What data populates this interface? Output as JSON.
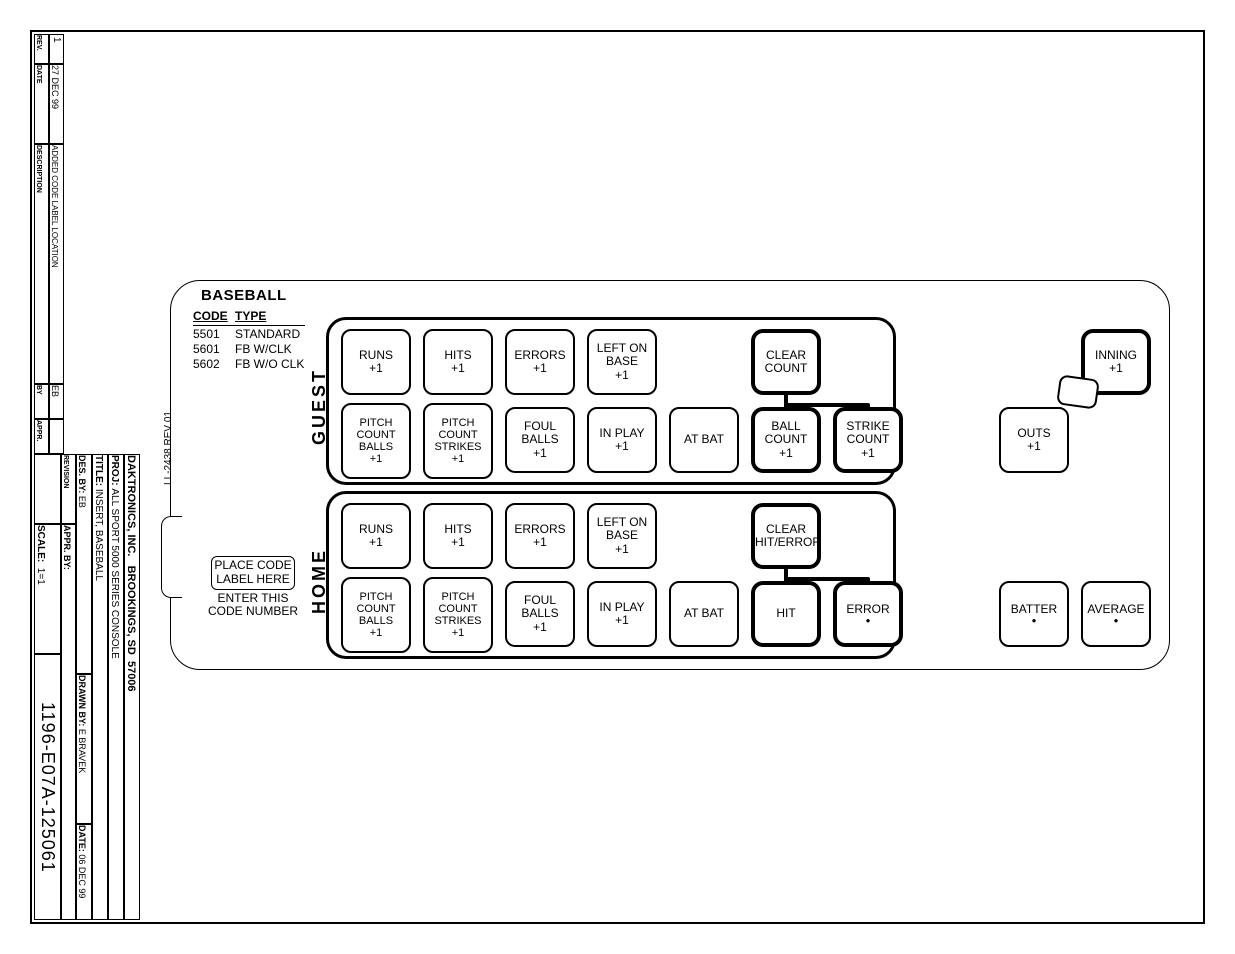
{
  "titleblock": {
    "rev_hdr": "REV.",
    "rev": "1",
    "date_hdr": "DATE",
    "date": "27 DEC 99",
    "desc_hdr": "DESCRIPTION",
    "desc": "ADDED CODE LABEL LOCATION",
    "by_hdr": "BY",
    "by": "EB",
    "appr_hdr": "APPR.",
    "company": "DAKTRONICS, INC.   BROOKINGS, SD  57006",
    "proj_hdr": "PROJ:",
    "proj": "ALL SPORT 5000 SERIES CONSOLE",
    "title_hdr": "TITLE:",
    "title": "INSERT, BASEBALL",
    "desby_hdr": "DES. BY:",
    "desby": "EB",
    "drawn_hdr": "DRAWN BY:",
    "drawn": "E BRAVEK",
    "date2_hdr": "DATE:",
    "date2": "06 DEC 99",
    "revision_hdr": "REVISION",
    "appr2_hdr": "APPR. BY:",
    "scale_hdr": "SCALE:",
    "scale": "1=1",
    "dwgno": "1196-E07A-125061"
  },
  "panel": {
    "header": "BASEBALL",
    "codes_hdr_code": "CODE",
    "codes_hdr_type": "TYPE",
    "codes": [
      {
        "code": "5501",
        "type": "STANDARD"
      },
      {
        "code": "5601",
        "type": "FB W/CLK"
      },
      {
        "code": "5602",
        "type": "FB W/O CLK"
      }
    ],
    "placecode_box": "PLACE CODE\nLABEL HERE",
    "placecode_txt": "ENTER THIS\nCODE NUMBER",
    "guest_label": "GUEST",
    "home_label": "HOME",
    "ll_label": "LL-2438 REV 01"
  },
  "keys": {
    "runs": "RUNS\n+1",
    "hits": "HITS\n+1",
    "errors": "ERRORS\n+1",
    "lob": "LEFT ON\nBASE\n+1",
    "pcb": "PITCH\nCOUNT\nBALLS\n+1",
    "pcs": "PITCH\nCOUNT\nSTRIKES\n+1",
    "foul": "FOUL\nBALLS\n+1",
    "inplay": "IN PLAY\n+1",
    "atbat": "AT BAT",
    "clearcount": "CLEAR\nCOUNT",
    "ball": "BALL\nCOUNT\n+1",
    "strike": "STRIKE\nCOUNT\n+1",
    "clearhe": "CLEAR\nHIT/ERROR",
    "hit": "HIT",
    "error": "ERROR",
    "inning": "INNING\n+1",
    "outs": "OUTS\n+1",
    "batter": "BATTER",
    "average": "AVERAGE"
  }
}
